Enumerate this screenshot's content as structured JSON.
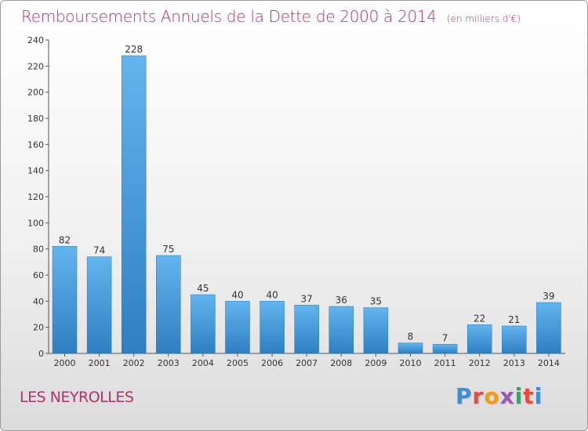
{
  "header": {
    "title": "Remboursements Annuels de la Dette de 2000 à 2014",
    "unit": "(en milliers d'€)"
  },
  "footer": {
    "commune": "LES NEYROLLES",
    "logo": [
      "P",
      "r",
      "o",
      "x",
      "i",
      "t",
      "i"
    ]
  },
  "colors": {
    "title": "#b0326e",
    "bar_light": "#62b5ee",
    "bar_dark": "#2d7fc2",
    "logo": [
      "#3a8fd8",
      "#e94b3c",
      "#f39c12",
      "#9b59b6",
      "#27ae60",
      "#e94b3c",
      "#3a8fd8"
    ]
  },
  "chart_data": {
    "type": "bar",
    "title": "Remboursements Annuels de la Dette de 2000 à 2014",
    "categories": [
      "2000",
      "2001",
      "2002",
      "2003",
      "2004",
      "2005",
      "2006",
      "2007",
      "2008",
      "2009",
      "2010",
      "2011",
      "2012",
      "2013",
      "2014"
    ],
    "values": [
      82,
      74,
      228,
      75,
      45,
      40,
      40,
      37,
      36,
      35,
      8,
      7,
      22,
      21,
      39
    ],
    "ylim": [
      0,
      240
    ],
    "yticks": [
      0,
      20,
      40,
      60,
      80,
      100,
      120,
      140,
      160,
      180,
      200,
      220,
      240
    ],
    "grid": false,
    "xlabel": "",
    "ylabel": ""
  }
}
